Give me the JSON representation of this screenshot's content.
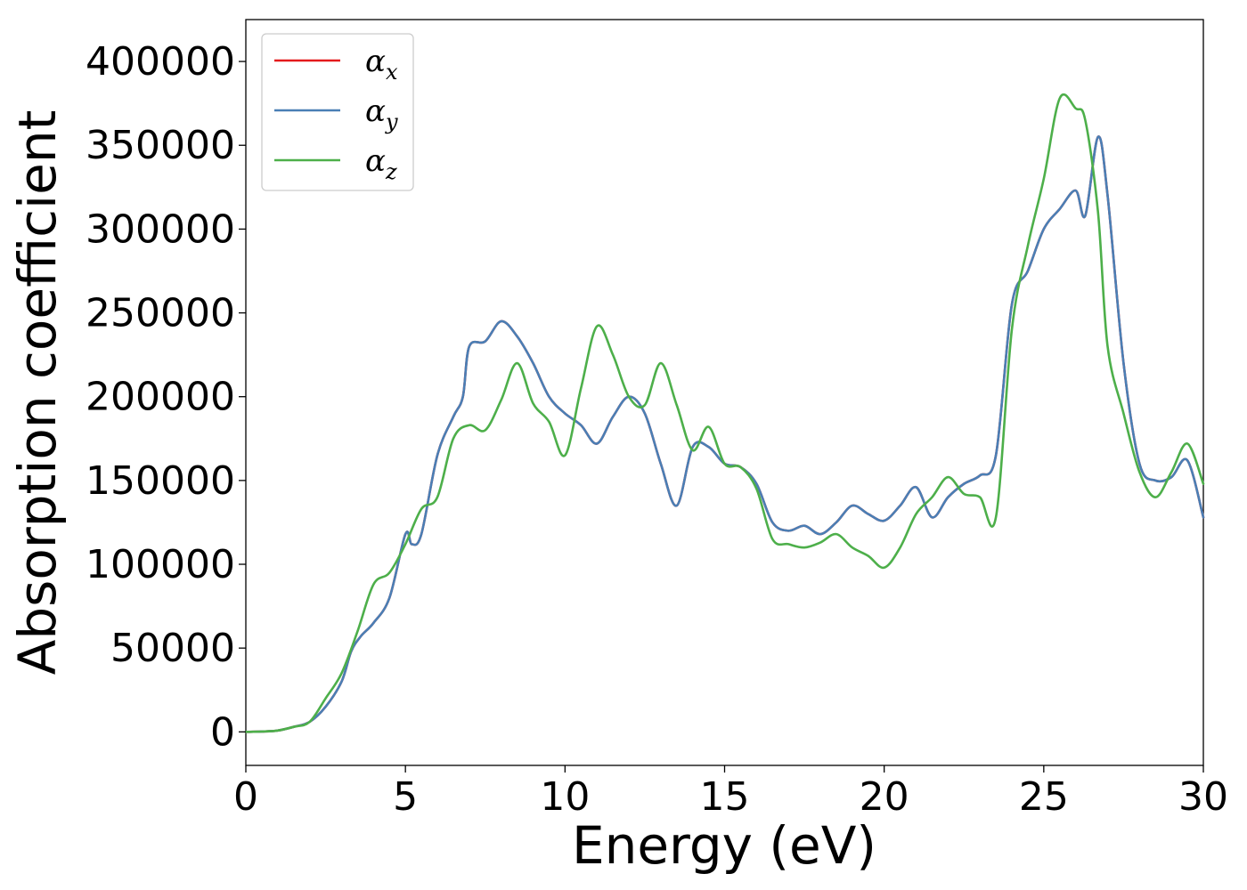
{
  "chart_data": {
    "type": "line",
    "title": "",
    "xlabel": "Energy (eV)",
    "ylabel": "Absorption coefficient",
    "xlim": [
      0,
      30
    ],
    "ylim": [
      -20000,
      425000
    ],
    "xticks": [
      "0",
      "5",
      "10",
      "15",
      "20",
      "25",
      "30"
    ],
    "yticks": [
      "0",
      "50000",
      "100000",
      "150000",
      "200000",
      "250000",
      "300000",
      "350000",
      "400000"
    ],
    "grid": false,
    "legend_position": "top-left",
    "series": [
      {
        "name": "αx",
        "legend_symbol": "α",
        "legend_subscript": "x",
        "color": "#e41a1c",
        "x": [
          0,
          0.5,
          1,
          1.5,
          2,
          2.5,
          3,
          3.3,
          3.6,
          4,
          4.5,
          5,
          5.2,
          5.5,
          6,
          6.5,
          6.8,
          7,
          7.5,
          8,
          8.5,
          9,
          9.5,
          10,
          10.5,
          11,
          11.5,
          12,
          12.5,
          13,
          13.5,
          14,
          14.5,
          15,
          15.5,
          16,
          16.5,
          17,
          17.5,
          18,
          18.5,
          19,
          19.5,
          20,
          20.5,
          21,
          21.5,
          22,
          22.5,
          23,
          23.5,
          24,
          24.5,
          25,
          25.5,
          26,
          26.3,
          26.7,
          27,
          27.5,
          28,
          28.5,
          29,
          29.5,
          30
        ],
        "values": [
          0,
          200,
          800,
          3000,
          6000,
          15000,
          30000,
          48000,
          57000,
          65000,
          80000,
          118000,
          112000,
          118000,
          165000,
          188000,
          200000,
          230000,
          233000,
          245000,
          236000,
          220000,
          200000,
          190000,
          183000,
          172000,
          188000,
          200000,
          190000,
          160000,
          135000,
          170000,
          170000,
          160000,
          158000,
          148000,
          125000,
          120000,
          123000,
          118000,
          125000,
          135000,
          130000,
          126000,
          135000,
          146000,
          128000,
          140000,
          148000,
          153000,
          165000,
          255000,
          275000,
          300000,
          312000,
          323000,
          308000,
          355000,
          320000,
          220000,
          160000,
          150000,
          152000,
          162000,
          128000
        ]
      },
      {
        "name": "αy",
        "legend_symbol": "α",
        "legend_subscript": "y",
        "color": "#4a7fb5",
        "x": [
          0,
          0.5,
          1,
          1.5,
          2,
          2.5,
          3,
          3.3,
          3.6,
          4,
          4.5,
          5,
          5.2,
          5.5,
          6,
          6.5,
          6.8,
          7,
          7.5,
          8,
          8.5,
          9,
          9.5,
          10,
          10.5,
          11,
          11.5,
          12,
          12.5,
          13,
          13.5,
          14,
          14.5,
          15,
          15.5,
          16,
          16.5,
          17,
          17.5,
          18,
          18.5,
          19,
          19.5,
          20,
          20.5,
          21,
          21.5,
          22,
          22.5,
          23,
          23.5,
          24,
          24.5,
          25,
          25.5,
          26,
          26.3,
          26.7,
          27,
          27.5,
          28,
          28.5,
          29,
          29.5,
          30
        ],
        "values": [
          0,
          200,
          800,
          3000,
          6000,
          15000,
          30000,
          48000,
          57000,
          65000,
          80000,
          118000,
          112000,
          118000,
          165000,
          188000,
          200000,
          230000,
          233000,
          245000,
          236000,
          220000,
          200000,
          190000,
          183000,
          172000,
          188000,
          200000,
          190000,
          160000,
          135000,
          170000,
          170000,
          160000,
          158000,
          148000,
          125000,
          120000,
          123000,
          118000,
          125000,
          135000,
          130000,
          126000,
          135000,
          146000,
          128000,
          140000,
          148000,
          153000,
          165000,
          255000,
          275000,
          300000,
          312000,
          323000,
          308000,
          355000,
          320000,
          220000,
          160000,
          150000,
          152000,
          162000,
          128000
        ]
      },
      {
        "name": "αz",
        "legend_symbol": "α",
        "legend_subscript": "z",
        "color": "#4daf4a",
        "x": [
          0,
          0.5,
          1,
          1.5,
          2,
          2.5,
          3,
          3.5,
          4,
          4.5,
          5,
          5.5,
          6,
          6.5,
          7,
          7.5,
          8,
          8.5,
          9,
          9.5,
          10,
          10.5,
          11,
          11.5,
          12,
          12.5,
          13,
          13.5,
          14,
          14.5,
          15,
          15.5,
          16,
          16.5,
          17,
          17.5,
          18,
          18.5,
          19,
          19.5,
          20,
          20.5,
          21,
          21.5,
          22,
          22.5,
          23,
          23.5,
          24,
          24.5,
          25,
          25.5,
          26,
          26.3,
          26.7,
          27,
          27.5,
          28,
          28.5,
          29,
          29.5,
          30
        ],
        "values": [
          0,
          200,
          800,
          3000,
          6000,
          20000,
          35000,
          60000,
          88000,
          95000,
          112000,
          133000,
          140000,
          175000,
          183000,
          180000,
          198000,
          220000,
          196000,
          185000,
          165000,
          205000,
          242000,
          225000,
          200000,
          195000,
          220000,
          195000,
          168000,
          182000,
          160000,
          158000,
          145000,
          115000,
          112000,
          110000,
          113000,
          118000,
          110000,
          105000,
          98000,
          110000,
          130000,
          140000,
          152000,
          142000,
          140000,
          128000,
          240000,
          290000,
          330000,
          378000,
          372000,
          365000,
          310000,
          230000,
          190000,
          155000,
          140000,
          155000,
          172000,
          148000
        ]
      }
    ]
  }
}
